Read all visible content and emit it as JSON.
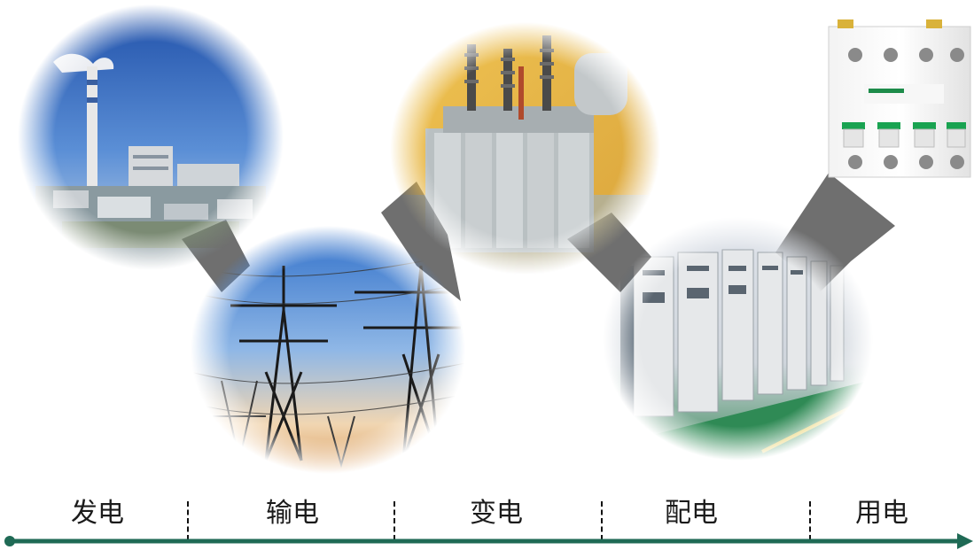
{
  "stages": [
    {
      "label": "发电",
      "photo": "power-plant"
    },
    {
      "label": "输电",
      "photo": "transmission-towers"
    },
    {
      "label": "变电",
      "photo": "transformer"
    },
    {
      "label": "配电",
      "photo": "switchgear-cabinets"
    },
    {
      "label": "用电",
      "photo": "circuit-breaker"
    }
  ],
  "colors": {
    "timeline": "#1f6a55",
    "arrow": "#6f6f6f",
    "breaker_green": "#19a351",
    "sky_blue": "#2d64b6",
    "transformer_wall": "#e9b94a"
  }
}
